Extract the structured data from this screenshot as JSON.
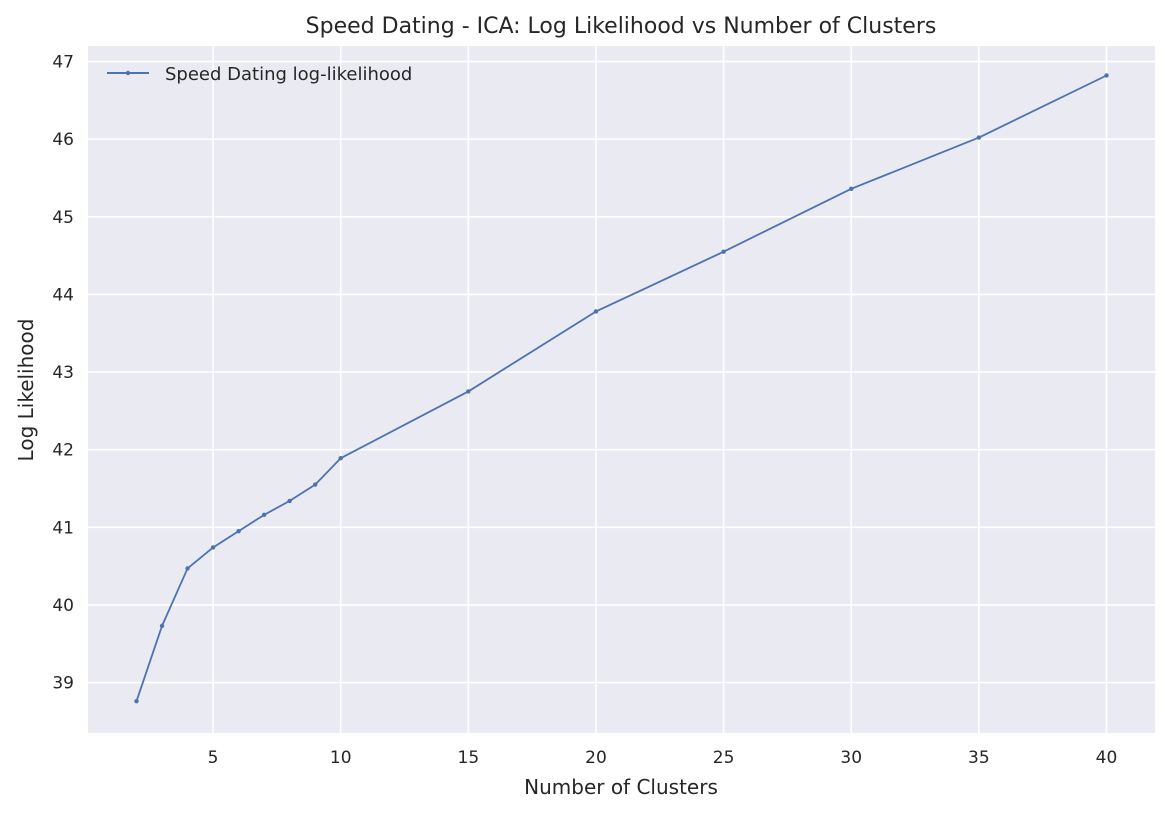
{
  "chart_data": {
    "type": "line",
    "title": "Speed Dating - ICA: Log Likelihood vs Number of Clusters",
    "xlabel": "Number of Clusters",
    "ylabel": "Log Likelihood",
    "xlim": [
      0.1,
      41.9
    ],
    "ylim": [
      38.35,
      47.2
    ],
    "xticks": [
      5,
      10,
      15,
      20,
      25,
      30,
      35,
      40
    ],
    "yticks": [
      39,
      40,
      41,
      42,
      43,
      44,
      45,
      46,
      47
    ],
    "grid": true,
    "legend_position": "top-left",
    "background_color": "#eaeaf2",
    "grid_color": "#ffffff",
    "series": [
      {
        "name": "Speed Dating log-likelihood",
        "color": "#4c72b0",
        "x": [
          2,
          3,
          4,
          5,
          6,
          7,
          8,
          9,
          10,
          15,
          20,
          25,
          30,
          35,
          40
        ],
        "y": [
          38.76,
          39.73,
          40.47,
          40.74,
          40.95,
          41.16,
          41.34,
          41.55,
          41.89,
          42.75,
          43.78,
          44.55,
          45.36,
          46.02,
          46.82
        ]
      }
    ]
  }
}
